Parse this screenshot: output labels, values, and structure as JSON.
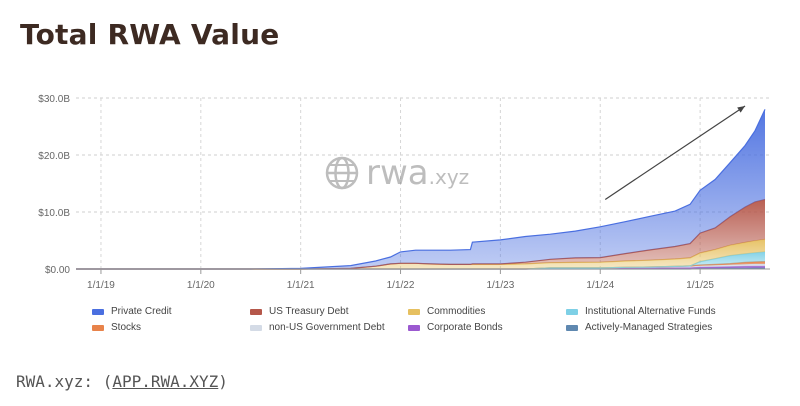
{
  "page": {
    "title": "Total RWA Value",
    "source_prefix": "RWA.xyz: (",
    "source_link": "APP.RWA.XYZ",
    "source_suffix": ")",
    "watermark_main": "rwa",
    "watermark_suffix": ".xyz"
  },
  "chart_data": {
    "type": "area",
    "stacked": true,
    "title": "Total RWA Value",
    "xlabel": "",
    "ylabel": "",
    "x_tick_labels": [
      "1/1/19",
      "1/1/20",
      "1/1/21",
      "1/1/22",
      "1/1/23",
      "1/1/24",
      "1/1/25"
    ],
    "y_tick_labels": [
      "$0.00",
      "$10.0B",
      "$20.0B",
      "$30.0B"
    ],
    "y_ticks": [
      0,
      10,
      20,
      30
    ],
    "ylim": [
      0,
      30
    ],
    "y_unit": "$B",
    "xlim": [
      2018.75,
      2025.7
    ],
    "grid": true,
    "legend_position": "bottom",
    "annotation": "upward trend arrow",
    "x": [
      2018.75,
      2019.0,
      2020.0,
      2020.5,
      2021.0,
      2021.25,
      2021.5,
      2021.75,
      2021.9,
      2022.0,
      2022.15,
      2022.3,
      2022.5,
      2022.7,
      2022.72,
      2023.0,
      2023.25,
      2023.5,
      2023.75,
      2024.0,
      2024.25,
      2024.5,
      2024.75,
      2024.9,
      2025.0,
      2025.15,
      2025.3,
      2025.45,
      2025.55,
      2025.65
    ],
    "series": [
      {
        "name": "Actively-Managed Strategies",
        "color": "#5f88b0",
        "values": [
          0,
          0,
          0,
          0,
          0,
          0,
          0,
          0,
          0,
          0,
          0,
          0,
          0,
          0,
          0,
          0,
          0,
          0,
          0,
          0,
          0,
          0,
          0,
          0,
          0.1,
          0.1,
          0.15,
          0.15,
          0.2,
          0.2
        ]
      },
      {
        "name": "Corporate Bonds",
        "color": "#9b59d0",
        "values": [
          0,
          0,
          0,
          0,
          0,
          0,
          0,
          0,
          0,
          0,
          0,
          0,
          0,
          0,
          0,
          0,
          0,
          0.1,
          0.1,
          0.1,
          0.15,
          0.15,
          0.2,
          0.2,
          0.2,
          0.25,
          0.25,
          0.3,
          0.3,
          0.3
        ]
      },
      {
        "name": "non-US Government Debt",
        "color": "#d4dbe6",
        "values": [
          0,
          0,
          0,
          0,
          0,
          0,
          0,
          0,
          0,
          0,
          0,
          0,
          0,
          0,
          0,
          0,
          0,
          0.1,
          0.1,
          0.1,
          0.15,
          0.2,
          0.2,
          0.25,
          0.3,
          0.3,
          0.35,
          0.4,
          0.4,
          0.4
        ]
      },
      {
        "name": "Stocks",
        "color": "#e8834a",
        "values": [
          0,
          0,
          0,
          0,
          0,
          0,
          0,
          0,
          0,
          0,
          0,
          0,
          0,
          0,
          0,
          0,
          0,
          0,
          0,
          0,
          0,
          0,
          0.05,
          0.1,
          0.1,
          0.15,
          0.2,
          0.3,
          0.35,
          0.4
        ]
      },
      {
        "name": "Institutional Alternative Funds",
        "color": "#7ed0e6",
        "values": [
          0,
          0,
          0,
          0,
          0,
          0,
          0,
          0,
          0,
          0,
          0,
          0,
          0,
          0,
          0,
          0,
          0,
          0,
          0,
          0,
          0,
          0,
          0,
          0,
          0.6,
          1.0,
          1.4,
          1.5,
          1.6,
          1.7
        ]
      },
      {
        "name": "Commodities",
        "color": "#e6c060",
        "values": [
          0,
          0,
          0,
          0,
          0,
          0.05,
          0.1,
          0.5,
          0.9,
          1.0,
          1.0,
          0.9,
          0.8,
          0.8,
          0.8,
          0.8,
          0.9,
          0.9,
          0.95,
          1.0,
          1.1,
          1.2,
          1.3,
          1.4,
          1.5,
          1.6,
          1.8,
          2.0,
          2.1,
          2.2
        ]
      },
      {
        "name": "US Treasury Debt",
        "color": "#b5574a",
        "values": [
          0,
          0,
          0,
          0,
          0,
          0,
          0,
          0,
          0,
          0,
          0,
          0,
          0,
          0,
          0.1,
          0.1,
          0.3,
          0.6,
          0.8,
          0.8,
          1.3,
          1.8,
          2.2,
          2.5,
          3.5,
          3.8,
          5.0,
          6.2,
          6.8,
          7.0
        ]
      },
      {
        "name": "Private Credit",
        "color": "#4a6fe0",
        "values": [
          0,
          0,
          0,
          0,
          0.1,
          0.3,
          0.5,
          0.9,
          1.2,
          2.0,
          2.3,
          2.4,
          2.5,
          2.6,
          3.8,
          4.2,
          4.5,
          4.4,
          4.7,
          5.4,
          5.6,
          5.9,
          6.2,
          6.9,
          7.5,
          8.5,
          9.5,
          10.8,
          12.5,
          15.8
        ]
      }
    ],
    "legend_order": [
      "Private Credit",
      "US Treasury Debt",
      "Commodities",
      "Institutional Alternative Funds",
      "Stocks",
      "non-US Government Debt",
      "Corporate Bonds",
      "Actively-Managed Strategies"
    ]
  }
}
